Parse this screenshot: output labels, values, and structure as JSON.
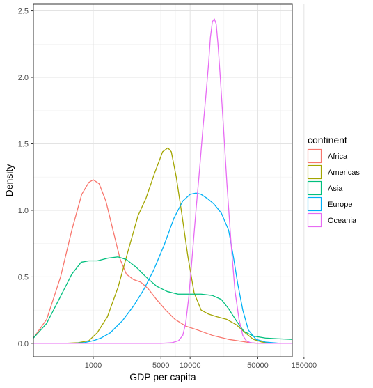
{
  "chart_data": {
    "type": "line",
    "xlabel": "GDP per capita",
    "ylabel": "Density",
    "x_scale": "log10",
    "xlim": [
      241,
      113523
    ],
    "ylim": [
      -0.1,
      2.55
    ],
    "x_major_ticks": [
      1000,
      5000,
      10000,
      50000,
      150000
    ],
    "x_tick_labels": [
      "1000",
      "5000",
      "10000",
      "50000",
      "150000"
    ],
    "x_minor_ticks": [
      2236,
      7071,
      22361,
      86603
    ],
    "y_major_ticks": [
      0.0,
      0.5,
      1.0,
      1.5,
      2.0,
      2.5
    ],
    "y_tick_labels": [
      "0.0",
      "0.5",
      "1.0",
      "1.5",
      "2.0",
      "2.5"
    ],
    "y_minor_ticks": [
      0.25,
      0.75,
      1.25,
      1.75,
      2.25
    ],
    "grid": true,
    "legend": {
      "title": "continent",
      "position": "right"
    },
    "series": [
      {
        "name": "Africa",
        "color": "#F8766D",
        "x": [
          241,
          330,
          460,
          600,
          760,
          900,
          1000,
          1150,
          1350,
          1600,
          1900,
          2200,
          2600,
          3100,
          3700,
          4500,
          5600,
          7000,
          9000,
          12000,
          17000,
          25000,
          34000,
          42000,
          50000
        ],
        "y": [
          0.04,
          0.18,
          0.5,
          0.85,
          1.12,
          1.21,
          1.23,
          1.2,
          1.07,
          0.85,
          0.63,
          0.52,
          0.48,
          0.46,
          0.41,
          0.33,
          0.25,
          0.18,
          0.13,
          0.1,
          0.06,
          0.03,
          0.015,
          0.005,
          0.0
        ]
      },
      {
        "name": "Americas",
        "color": "#A3A500",
        "x": [
          241,
          500,
          700,
          900,
          1100,
          1400,
          1800,
          2300,
          2900,
          3500,
          4300,
          5200,
          5900,
          6400,
          7200,
          8300,
          9500,
          11000,
          13000,
          15500,
          19000,
          24000,
          30000,
          37000,
          45000,
          55000,
          70000,
          113523
        ],
        "y": [
          0.0,
          0.0,
          0.005,
          0.02,
          0.08,
          0.2,
          0.42,
          0.7,
          0.96,
          1.09,
          1.28,
          1.44,
          1.47,
          1.44,
          1.25,
          0.95,
          0.65,
          0.38,
          0.25,
          0.22,
          0.2,
          0.18,
          0.14,
          0.08,
          0.03,
          0.01,
          0.0,
          0.0
        ]
      },
      {
        "name": "Asia",
        "color": "#00BF7D",
        "x": [
          241,
          330,
          450,
          600,
          750,
          900,
          1100,
          1400,
          1800,
          2200,
          2800,
          3500,
          4500,
          5800,
          7500,
          10000,
          13000,
          17000,
          21000,
          25000,
          30000,
          36000,
          45000,
          60000,
          80000,
          113523
        ],
        "y": [
          0.04,
          0.15,
          0.34,
          0.52,
          0.61,
          0.62,
          0.62,
          0.64,
          0.65,
          0.63,
          0.57,
          0.5,
          0.43,
          0.39,
          0.37,
          0.37,
          0.37,
          0.36,
          0.33,
          0.26,
          0.17,
          0.09,
          0.055,
          0.04,
          0.035,
          0.03
        ]
      },
      {
        "name": "Europe",
        "color": "#00B0F6",
        "x": [
          241,
          600,
          800,
          1000,
          1200,
          1500,
          2000,
          2600,
          3300,
          4200,
          5400,
          6800,
          8400,
          10000,
          11500,
          13000,
          15000,
          17500,
          21000,
          25000,
          28000,
          31000,
          35000,
          40000,
          48000,
          60000,
          80000,
          113523
        ],
        "y": [
          0.0,
          0.0,
          0.005,
          0.02,
          0.04,
          0.08,
          0.17,
          0.28,
          0.4,
          0.55,
          0.74,
          0.94,
          1.07,
          1.12,
          1.13,
          1.12,
          1.09,
          1.05,
          0.98,
          0.85,
          0.65,
          0.45,
          0.25,
          0.1,
          0.03,
          0.01,
          0.002,
          0.0
        ]
      },
      {
        "name": "Oceania",
        "color": "#E76BF3",
        "x": [
          241,
          5000,
          6500,
          7600,
          8400,
          9000,
          9700,
          10500,
          11500,
          12500,
          13500,
          14500,
          15500,
          16200,
          17000,
          17800,
          18600,
          19400,
          20500,
          22000,
          24000,
          26500,
          29000,
          32000,
          35000,
          38000,
          42000,
          50000,
          113523
        ],
        "y": [
          0.0,
          0.0,
          0.005,
          0.02,
          0.06,
          0.15,
          0.35,
          0.65,
          1.0,
          1.3,
          1.6,
          1.85,
          2.1,
          2.3,
          2.42,
          2.44,
          2.4,
          2.25,
          2.0,
          1.65,
          1.2,
          0.75,
          0.4,
          0.18,
          0.06,
          0.02,
          0.005,
          0.0,
          0.0
        ]
      }
    ]
  }
}
